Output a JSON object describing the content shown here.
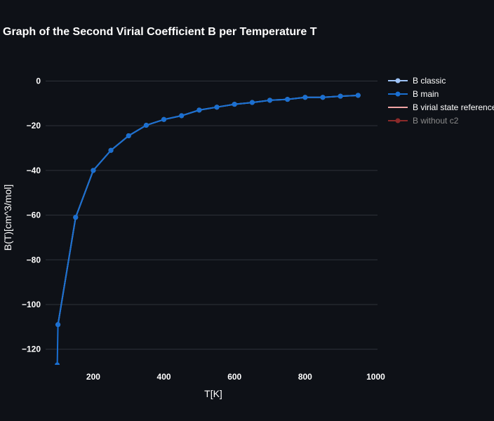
{
  "chart_data": {
    "type": "line",
    "title": "Graph of the Second Virial Coefficient B per Temperature T",
    "xlabel": "T[K]",
    "ylabel": "B(T)[cm^3/mol]",
    "xlim": [
      65,
      1005
    ],
    "ylim": [
      -127,
      8
    ],
    "xticks": [
      200,
      400,
      600,
      800,
      1000
    ],
    "yticks": [
      0,
      -20,
      -40,
      -60,
      -80,
      -100,
      -120
    ],
    "grid": true,
    "legend_position": "right",
    "series": [
      {
        "name": "B classic",
        "color": "#9ec3f7",
        "mode": "lines+markers",
        "x": [
          100,
          150,
          200,
          250,
          300,
          350,
          400,
          450,
          500,
          550,
          600,
          650,
          700,
          750,
          800,
          850,
          900,
          950
        ],
        "y": [
          -109,
          -61,
          -40,
          -31,
          -24.5,
          -19.8,
          -17.2,
          -15.5,
          -13,
          -11.7,
          -10.4,
          -9.6,
          -8.6,
          -8.2,
          -7.3,
          -7.3,
          -6.8,
          -6.4
        ]
      },
      {
        "name": "B main",
        "color": "#1a6fd1",
        "mode": "lines+markers",
        "x": [
          98,
          100,
          150,
          200,
          250,
          300,
          350,
          400,
          450,
          500,
          550,
          600,
          650,
          700,
          750,
          800,
          850,
          900,
          950
        ],
        "y": [
          -127,
          -109,
          -61,
          -40,
          -31,
          -24.5,
          -19.8,
          -17.2,
          -15.5,
          -13,
          -11.7,
          -10.4,
          -9.6,
          -8.6,
          -8.2,
          -7.3,
          -7.3,
          -6.8,
          -6.4
        ]
      },
      {
        "name": "B virial state reference",
        "color": "#f2a5a5",
        "mode": "lines",
        "hidden": true,
        "x": [],
        "y": []
      },
      {
        "name": "B without c2",
        "color": "#8b2a2a",
        "mode": "lines+markers",
        "hidden": true,
        "x": [],
        "y": []
      }
    ]
  }
}
